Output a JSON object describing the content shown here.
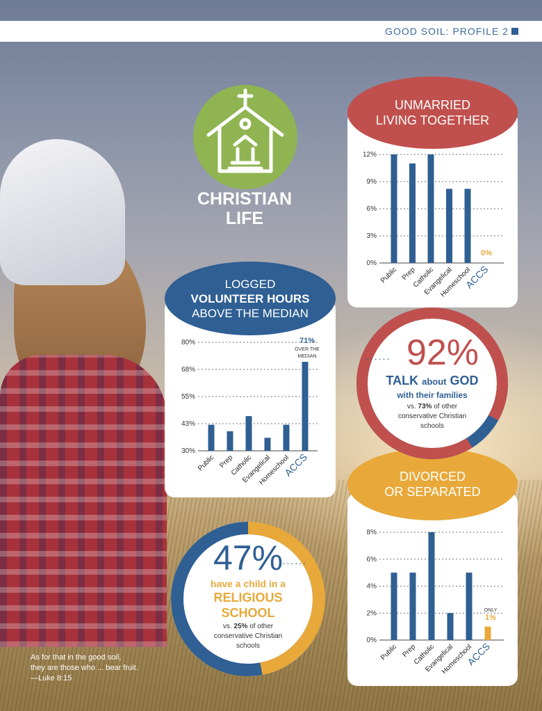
{
  "header": {
    "title": "GOOD SOIL: PROFILE 2"
  },
  "section": {
    "title_line1": "CHRISTIAN",
    "title_line2": "LIFE",
    "icon": "church-icon"
  },
  "quote": {
    "line1": "As for that in the good soil,",
    "line2": "they are those who ... bear fruit.",
    "line3": "—Luke 8:15"
  },
  "colors": {
    "blue": "#2f5f93",
    "red": "#c0504d",
    "orange": "#e8a93a",
    "green": "#8fb451"
  },
  "chart_data": [
    {
      "id": "unmarried",
      "type": "bar",
      "title_line1": "UNMARRIED",
      "title_line2": "LIVING TOGETHER",
      "categories": [
        "Public",
        "Prep",
        "Catholic",
        "Evangelical",
        "Homeschool",
        "ACCS"
      ],
      "values": [
        12,
        11,
        12,
        8.2,
        8.2,
        0
      ],
      "ylim": [
        0,
        12
      ],
      "yticks": [
        "0%",
        "3%",
        "6%",
        "9%",
        "12%"
      ],
      "annotation": "0%",
      "highlight": "ACCS"
    },
    {
      "id": "volunteer",
      "type": "bar",
      "title_line1": "LOGGED",
      "title_line2": "VOLUNTEER HOURS",
      "title_line3": "ABOVE THE MEDIAN",
      "categories": [
        "Public",
        "Prep",
        "Catholic",
        "Evangelical",
        "Homeschool",
        "ACCS"
      ],
      "values": [
        42,
        39,
        46,
        36,
        42,
        71
      ],
      "ylim": [
        30,
        80
      ],
      "yticks": [
        "30%",
        "43%",
        "55%",
        "68%",
        "80%"
      ],
      "annotation": "71%",
      "annotation_sub1": "OVER THE",
      "annotation_sub2": "MEDIAN",
      "highlight": "ACCS"
    },
    {
      "id": "divorced",
      "type": "bar",
      "title_line1": "DIVORCED",
      "title_line2": "OR SEPARATED",
      "categories": [
        "Public",
        "Prep",
        "Catholic",
        "Evangelical",
        "Homeschool",
        "ACCS"
      ],
      "values": [
        5,
        5,
        8,
        2,
        5,
        1
      ],
      "ylim": [
        0,
        8
      ],
      "yticks": [
        "0%",
        "2%",
        "4%",
        "6%",
        "8%"
      ],
      "annotation": "1%",
      "annotation_pre": "ONLY",
      "highlight": "ACCS"
    },
    {
      "id": "talk-god",
      "type": "pie",
      "value": 92,
      "big": "92%",
      "line1a": "TALK",
      "line1b": "about",
      "line1c": "GOD",
      "line2": "with their families",
      "vs_pre": "vs.",
      "vs_val": "73%",
      "vs_post": "of other",
      "vs_line2": "conservative Christian",
      "vs_line3": "schools"
    },
    {
      "id": "religious-school",
      "type": "pie",
      "value": 47,
      "big": "47%",
      "line1": "have a child in a",
      "line2": "RELIGIOUS",
      "line3": "SCHOOL",
      "vs_pre": "vs.",
      "vs_val": "25%",
      "vs_post": "of other",
      "vs_line2": "conservative Christian",
      "vs_line3": "schools"
    }
  ]
}
